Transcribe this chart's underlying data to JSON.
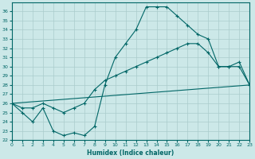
{
  "xlabel": "Humidex (Indice chaleur)",
  "background_color": "#cce8e8",
  "grid_color": "#aacccc",
  "line_color": "#006666",
  "xlim": [
    0,
    23
  ],
  "ylim": [
    22,
    37
  ],
  "xticks": [
    0,
    1,
    2,
    3,
    4,
    5,
    6,
    7,
    8,
    9,
    10,
    11,
    12,
    13,
    14,
    15,
    16,
    17,
    18,
    19,
    20,
    21,
    22,
    23
  ],
  "yticks": [
    22,
    23,
    24,
    25,
    26,
    27,
    28,
    29,
    30,
    31,
    32,
    33,
    34,
    35,
    36
  ],
  "line1_x": [
    0,
    1,
    2,
    3,
    4,
    5,
    6,
    7,
    8,
    9,
    10,
    11,
    12,
    13,
    14,
    15,
    16,
    17,
    18,
    19,
    20,
    21,
    22,
    23
  ],
  "line1_y": [
    26.0,
    25.0,
    24.0,
    25.5,
    23.0,
    22.5,
    22.8,
    22.5,
    23.5,
    28.0,
    31.0,
    32.5,
    34.0,
    36.5,
    36.5,
    36.5,
    35.5,
    34.5,
    33.5,
    33.0,
    30.0,
    30.0,
    30.0,
    28.0
  ],
  "line2_x": [
    0,
    1,
    2,
    3,
    4,
    5,
    6,
    7,
    8,
    9,
    10,
    11,
    12,
    13,
    14,
    15,
    16,
    17,
    18,
    19,
    20,
    21,
    22,
    23
  ],
  "line2_y": [
    26.0,
    25.5,
    25.5,
    26.0,
    25.5,
    25.0,
    25.5,
    26.0,
    27.5,
    28.5,
    29.0,
    29.5,
    30.0,
    30.5,
    31.0,
    31.5,
    32.0,
    32.5,
    32.5,
    31.5,
    30.0,
    30.0,
    30.5,
    28.0
  ],
  "line3_x": [
    0,
    23
  ],
  "line3_y": [
    26.0,
    28.0
  ]
}
